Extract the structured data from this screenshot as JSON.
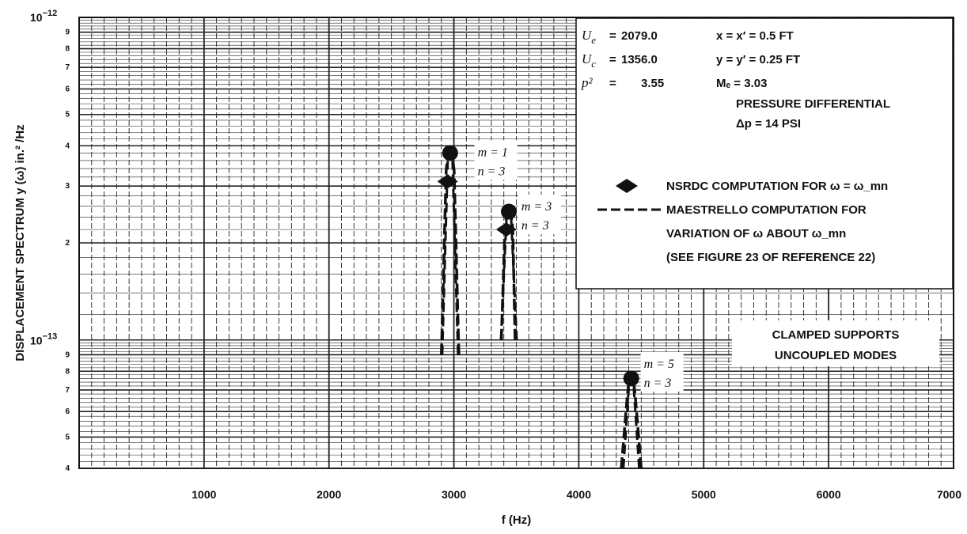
{
  "chart_data": {
    "type": "scatter",
    "title": "",
    "xlabel": "f (Hz)",
    "ylabel": "DISPLACEMENT SPECTRUM y (ω) in.² /Hz",
    "x_ticks": [
      "1000",
      "2000",
      "3000",
      "4000",
      "5000",
      "6000",
      "7000"
    ],
    "xlim": [
      0,
      7000
    ],
    "ylim": [
      4e-14,
      1e-12
    ],
    "y_scale": "log",
    "y_major_labels": {
      "top": "10",
      "top_exp": "−12",
      "mid": "10",
      "mid_exp": "−13"
    },
    "y_minor_labels": [
      "9",
      "8",
      "7",
      "6",
      "5",
      "4",
      "3",
      "2"
    ],
    "grid": true,
    "legend_position": "top-right",
    "parameters": [
      {
        "sym": "U",
        "sub": "e",
        "eq": "=",
        "val": "2079.0"
      },
      {
        "sym": "U",
        "sub": "c",
        "eq": "=",
        "val": "1356.0"
      },
      {
        "sym": "p²",
        "sub": "",
        "eq": "=",
        "val": "3.55"
      }
    ],
    "parameters_right": [
      {
        "text": "x  =  x′ =  0.5 FT"
      },
      {
        "text": "y  =  y′ =  0.25 FT"
      },
      {
        "text": "Mₑ  =  3.03"
      }
    ],
    "pressure_note": [
      "PRESSURE DIFFERENTIAL",
      "Δp = 14 PSI"
    ],
    "legend": [
      {
        "marker": "diamond",
        "label": "NSRDC COMPUTATION FOR ω = ω_mn"
      },
      {
        "marker": "dashed",
        "label": "MAESTRELLO COMPUTATION FOR"
      }
    ],
    "legend_continuation": [
      "VARIATION OF ω ABOUT ω_mn",
      "(SEE FIGURE 23 OF REFERENCE 22)"
    ],
    "support_note": [
      "CLAMPED SUPPORTS",
      "UNCOUPLED MODES"
    ],
    "nsrdc_points": [
      {
        "mode": "m = 1, n = 3",
        "x": 2950,
        "y": 3.1e-13
      },
      {
        "mode": "m = 3, n = 3",
        "x": 3420,
        "y": 2.2e-13
      }
    ],
    "maestrello_peaks": [
      {
        "mode": "m = 1, n = 3",
        "x": 2970,
        "y": 3.8e-13,
        "x_range": [
          2900,
          3040
        ],
        "y_floor": 9e-14
      },
      {
        "mode": "m = 3, n = 3",
        "x": 3440,
        "y": 2.5e-13,
        "x_range": [
          3380,
          3490
        ],
        "y_floor": 1e-13
      },
      {
        "mode": "m = 5, n = 3",
        "x": 4420,
        "y": 7.6e-14,
        "x_range": [
          4340,
          4500
        ],
        "y_floor": 4e-14
      }
    ],
    "mode_labels": [
      {
        "m": "m = 1",
        "n": "n = 3"
      },
      {
        "m": "m = 3",
        "n": "n = 3"
      },
      {
        "m": "m = 5",
        "n": "n = 3"
      }
    ]
  }
}
